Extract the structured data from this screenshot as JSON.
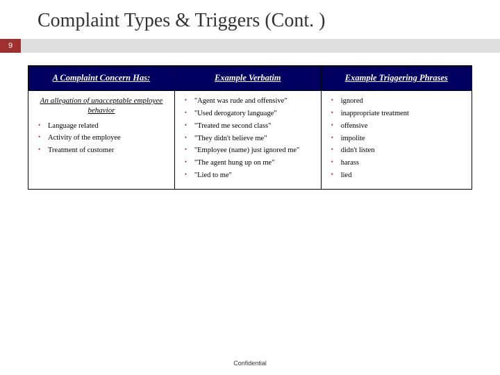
{
  "title": "Complaint Types & Triggers (Cont. )",
  "slide_number": "9",
  "accent_color": "#a03030",
  "header_bg": "#000060",
  "columns": {
    "left": "A Complaint Concern Has:",
    "mid": "Example Verbatim",
    "right": "Example Triggering Phrases"
  },
  "left_subhead": "An allegation of unacceptable employee behavior",
  "left_items": [
    "Language related",
    "Activity of the employee",
    "Treatment of customer"
  ],
  "mid_items": [
    "\"Agent was rude and offensive\"",
    "\"Used derogatory language\"",
    "\"Treated me second class\"",
    "\"They didn't believe me\"",
    "\"Employee (name) just ignored me\"",
    "\"The agent hung up on me\"",
    "\"Lied to me\""
  ],
  "right_items": [
    "ignored",
    "inappropriate treatment",
    "offensive",
    "impolite",
    "didn't listen",
    "harass",
    "lied"
  ],
  "footer": "Confidential"
}
